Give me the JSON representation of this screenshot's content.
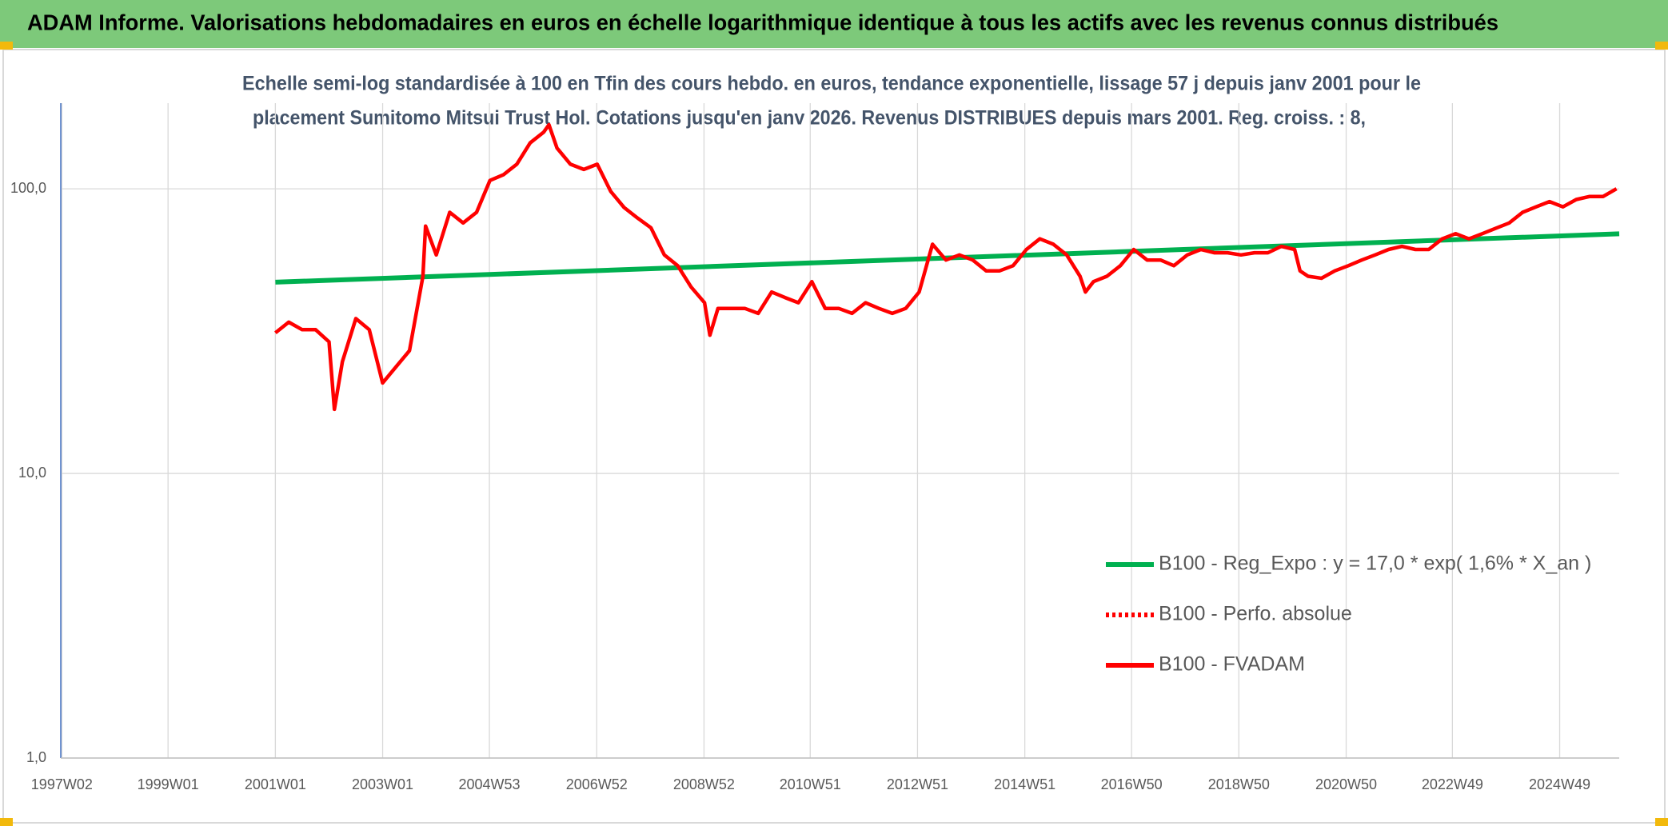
{
  "chart_data": {
    "type": "line",
    "title": "ADAM Informe. Valorisations hebdomadaires en euros en échelle logarithmique identique à tous les actifs avec les revenus connus distribués",
    "subtitle": [
      "Echelle semi-log standardisée à 100 en Tfin des cours hebdo. en euros, tendance exponentielle, lissage 57 j depuis janv 2001 pour le",
      "placement Sumitomo Mitsui Trust Hol. Cotations jusqu'en janv 2026. Revenus DISTRIBUES depuis mars 2001. Reg. croiss. : 8,"
    ],
    "xlim": [
      1997.0,
      2026.05
    ],
    "xticks": [
      {
        "value": 1997.02,
        "label": "1997W02"
      },
      {
        "value": 1999.0,
        "label": "1999W01"
      },
      {
        "value": 2001.0,
        "label": "2001W01"
      },
      {
        "value": 2003.0,
        "label": "2003W01"
      },
      {
        "value": 2004.99,
        "label": "2004W53"
      },
      {
        "value": 2006.99,
        "label": "2006W52"
      },
      {
        "value": 2008.99,
        "label": "2008W52"
      },
      {
        "value": 2010.97,
        "label": "2010W51"
      },
      {
        "value": 2012.97,
        "label": "2012W51"
      },
      {
        "value": 2014.97,
        "label": "2014W51"
      },
      {
        "value": 2016.96,
        "label": "2016W50"
      },
      {
        "value": 2018.96,
        "label": "2018W50"
      },
      {
        "value": 2020.96,
        "label": "2020W50"
      },
      {
        "value": 2022.94,
        "label": "2022W49"
      },
      {
        "value": 2024.94,
        "label": "2024W49"
      }
    ],
    "ylim": [
      1,
      200
    ],
    "log_y": true,
    "yticks": [
      {
        "value": 1,
        "label": "1,0"
      },
      {
        "value": 10,
        "label": "10,0"
      },
      {
        "value": 100,
        "label": "100,0"
      }
    ],
    "grid": true,
    "legend": "bottom-right",
    "series": [
      {
        "name": "B100 - Reg_Expo : y = 17,0 * exp( 1,6% *  X_an )",
        "color": "#00b050",
        "style": "solid",
        "x": [
          2001.0,
          2026.05
        ],
        "values": [
          47,
          69.5
        ]
      },
      {
        "name": "B100 - Perfo. absolue",
        "color": "#ff0000",
        "style": "dotted",
        "x": [],
        "values": []
      },
      {
        "name": "B100 - FVADAM",
        "color": "#ff0000",
        "style": "solid",
        "x": [
          2001.0,
          2001.25,
          2001.5,
          2001.75,
          2002.0,
          2002.1,
          2002.25,
          2002.5,
          2002.75,
          2003.0,
          2003.25,
          2003.5,
          2003.75,
          2003.8,
          2004.0,
          2004.25,
          2004.5,
          2004.75,
          2005.0,
          2005.25,
          2005.5,
          2005.75,
          2006.0,
          2006.1,
          2006.25,
          2006.5,
          2006.75,
          2007.0,
          2007.25,
          2007.5,
          2007.75,
          2008.0,
          2008.25,
          2008.5,
          2008.75,
          2009.0,
          2009.1,
          2009.25,
          2009.5,
          2009.75,
          2010.0,
          2010.25,
          2010.5,
          2010.75,
          2011.0,
          2011.25,
          2011.5,
          2011.75,
          2012.0,
          2012.25,
          2012.5,
          2012.75,
          2013.0,
          2013.25,
          2013.5,
          2013.75,
          2014.0,
          2014.25,
          2014.5,
          2014.75,
          2015.0,
          2015.25,
          2015.5,
          2015.75,
          2016.0,
          2016.1,
          2016.25,
          2016.5,
          2016.75,
          2017.0,
          2017.25,
          2017.5,
          2017.75,
          2018.0,
          2018.25,
          2018.5,
          2018.75,
          2019.0,
          2019.25,
          2019.5,
          2019.75,
          2020.0,
          2020.1,
          2020.25,
          2020.5,
          2020.75,
          2021.0,
          2021.25,
          2021.5,
          2021.75,
          2022.0,
          2022.25,
          2022.5,
          2022.75,
          2023.0,
          2023.25,
          2023.5,
          2023.75,
          2024.0,
          2024.25,
          2024.5,
          2024.75,
          2025.0,
          2025.25,
          2025.5,
          2025.75,
          2026.0
        ],
        "values": [
          31.2,
          34,
          32,
          32,
          29,
          16.8,
          24.7,
          35,
          32,
          20.8,
          23.7,
          27,
          49.3,
          74,
          58.6,
          82.7,
          75.9,
          82.7,
          107,
          112,
          122,
          145,
          158,
          168,
          139,
          122,
          117,
          122,
          98,
          86,
          79,
          73,
          58.6,
          53.7,
          45.2,
          39.8,
          30.6,
          38,
          38,
          38,
          36.5,
          43.4,
          41.5,
          39.8,
          47.2,
          38,
          38,
          36.5,
          39.8,
          38,
          36.5,
          38,
          43.4,
          63.9,
          56.2,
          58.6,
          56.2,
          51.5,
          51.5,
          53.7,
          61.2,
          66.7,
          63.9,
          58.6,
          49.3,
          43.4,
          47.2,
          49.3,
          53.7,
          61.2,
          56.2,
          56.2,
          53.7,
          58.6,
          61.2,
          59.6,
          59.6,
          58.6,
          59.6,
          59.6,
          62.8,
          61.2,
          51.5,
          49.3,
          48.5,
          51.5,
          53.7,
          56.2,
          58.6,
          61.2,
          62.8,
          61.2,
          61.2,
          66.7,
          69.6,
          66.7,
          69.6,
          72.7,
          75.9,
          82.7,
          86.4,
          90.2,
          86.4,
          91.7,
          94,
          94,
          100
        ]
      }
    ]
  }
}
